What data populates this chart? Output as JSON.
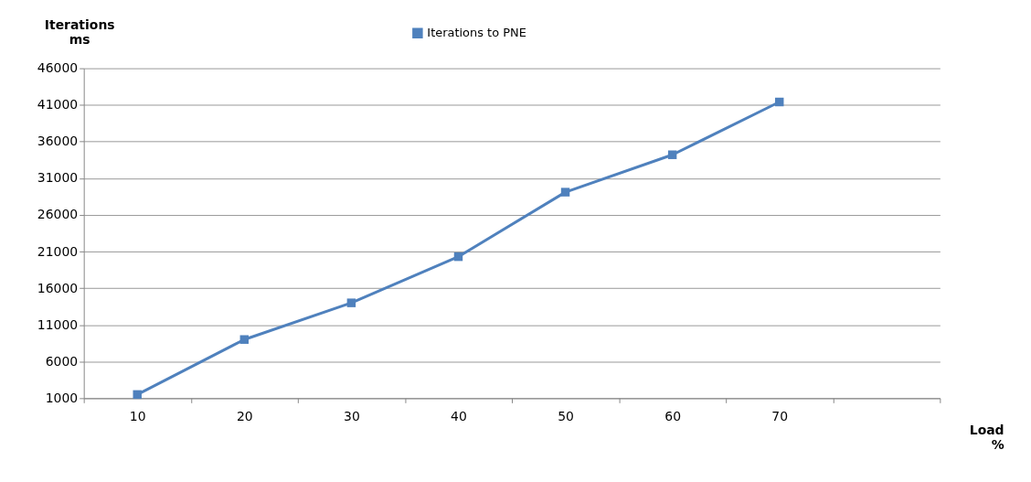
{
  "chart_data": {
    "type": "line",
    "xlabel": "Load %",
    "ylabel": "Iterations ms",
    "categories": [
      "10",
      "20",
      "30",
      "40",
      "50",
      "60",
      "70",
      null
    ],
    "series": [
      {
        "name": "Iterations to PNE",
        "color": "#4f81bd",
        "values": [
          1500,
          9000,
          14000,
          20300,
          29100,
          34200,
          41400,
          null
        ]
      }
    ],
    "ylim": [
      1000,
      46000
    ],
    "yticks": [
      1000,
      6000,
      11000,
      16000,
      21000,
      26000,
      31000,
      36000,
      41000,
      46000
    ],
    "grid": "y",
    "legend": "top",
    "marker": "square",
    "line_style": "solid"
  }
}
